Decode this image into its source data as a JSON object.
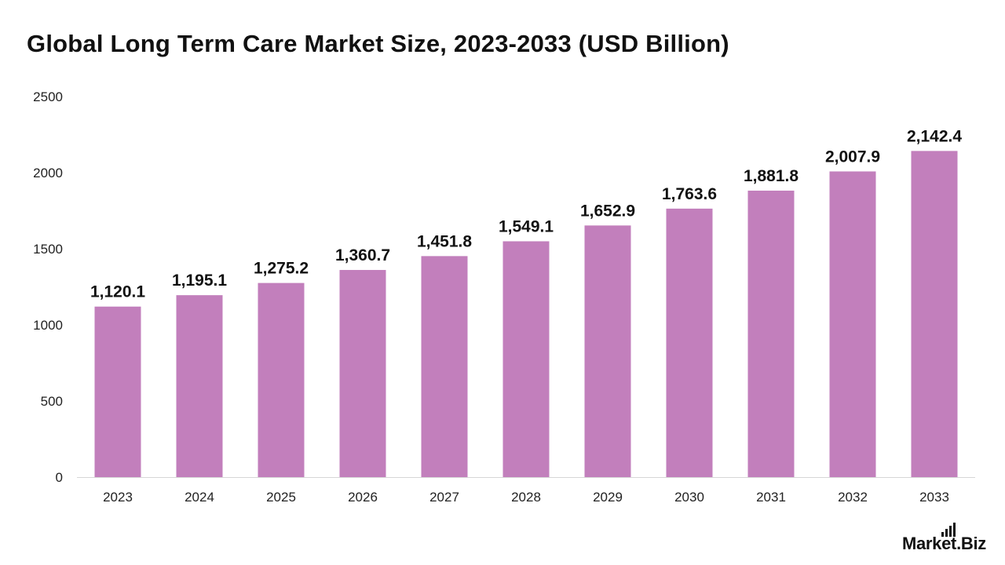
{
  "title": "Global Long Term Care Market Size, 2023-2033 (USD Billion)",
  "brand": {
    "text": "Market.Biz",
    "icon": "bar-chart-icon"
  },
  "colors": {
    "bar": "#c27fbc",
    "axis": "#d6d6d6",
    "text": "#111111"
  },
  "chart_data": {
    "type": "bar",
    "title": "Global Long Term Care Market Size, 2023-2033 (USD Billion)",
    "xlabel": "",
    "ylabel": "",
    "categories": [
      "2023",
      "2024",
      "2025",
      "2026",
      "2027",
      "2028",
      "2029",
      "2030",
      "2031",
      "2032",
      "2033"
    ],
    "values": [
      1120.1,
      1195.1,
      1275.2,
      1360.7,
      1451.8,
      1549.1,
      1652.9,
      1763.6,
      1881.8,
      2007.9,
      2142.4
    ],
    "value_labels": [
      "1,120.1",
      "1,195.1",
      "1,275.2",
      "1,360.7",
      "1,451.8",
      "1,549.1",
      "1,652.9",
      "1,763.6",
      "1,881.8",
      "2,007.9",
      "2,142.4"
    ],
    "y_ticks": [
      "0",
      "500",
      "1000",
      "1500",
      "2000",
      "2500"
    ],
    "ylim": [
      0,
      2500
    ],
    "grid": false,
    "legend": "none"
  }
}
